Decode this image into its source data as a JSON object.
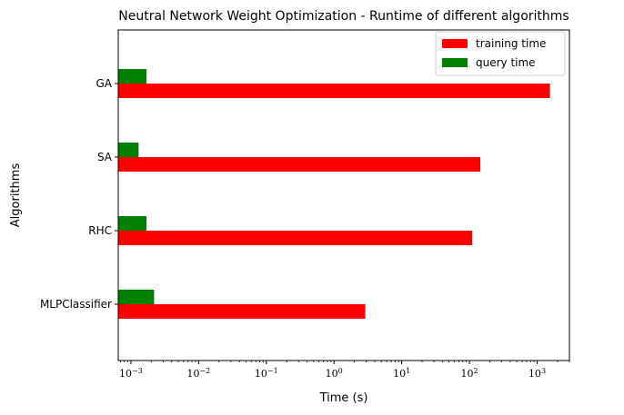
{
  "chart_data": {
    "type": "bar",
    "orientation": "horizontal",
    "title": "Neutral Network Weight Optimization - Runtime of different algorithms",
    "xlabel": "Time (s)",
    "ylabel": "Algorithms",
    "xscale": "log",
    "xlim": [
      0.00065,
      3000
    ],
    "categories": [
      "MLPClassifier",
      "RHC",
      "SA",
      "GA"
    ],
    "series": [
      {
        "name": "training time",
        "color": "#ff0000",
        "values": [
          2.9,
          110,
          145,
          1550
        ]
      },
      {
        "name": "query time",
        "color": "#008000",
        "values": [
          0.0022,
          0.0017,
          0.0013,
          0.0017
        ]
      }
    ],
    "x_ticks": [
      {
        "value": 0.001,
        "base": "10",
        "exp": "−3"
      },
      {
        "value": 0.01,
        "base": "10",
        "exp": "−2"
      },
      {
        "value": 0.1,
        "base": "10",
        "exp": "−1"
      },
      {
        "value": 1,
        "base": "10",
        "exp": "0"
      },
      {
        "value": 10,
        "base": "10",
        "exp": "1"
      },
      {
        "value": 100,
        "base": "10",
        "exp": "2"
      },
      {
        "value": 1000,
        "base": "10",
        "exp": "3"
      }
    ],
    "grid": false,
    "legend_position": "top-right"
  }
}
